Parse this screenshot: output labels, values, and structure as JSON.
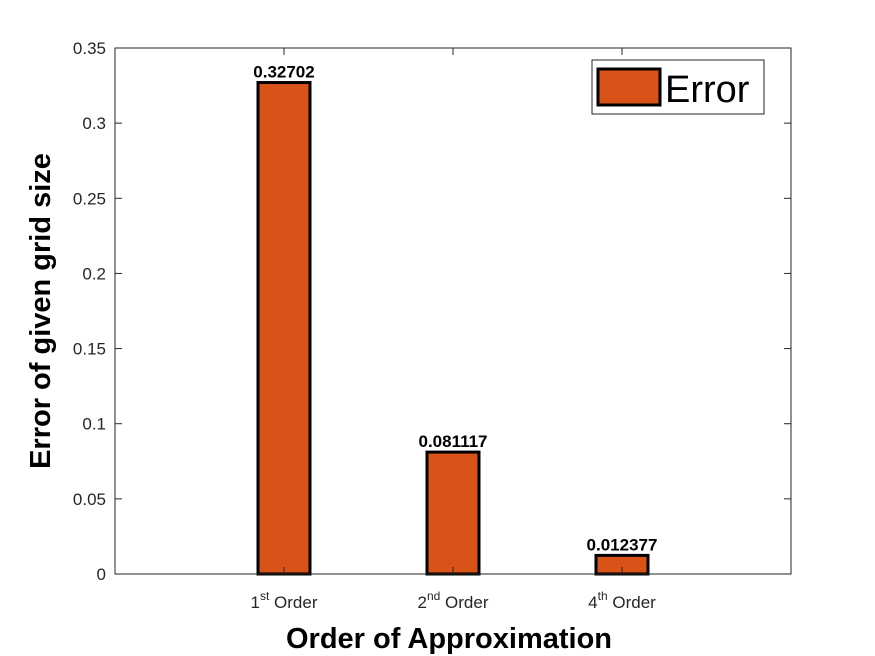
{
  "chart_data": {
    "type": "bar",
    "categories": [
      {
        "base": "1",
        "sup": "st",
        "rest": " Order"
      },
      {
        "base": "2",
        "sup": "nd",
        "rest": " Order"
      },
      {
        "base": "4",
        "sup": "th",
        "rest": " Order"
      }
    ],
    "series": [
      {
        "name": "Error",
        "values": [
          0.32702,
          0.081117,
          0.012377
        ],
        "color": "#D95319"
      }
    ],
    "data_labels": [
      "0.32702",
      "0.081117",
      "0.012377"
    ],
    "xlabel": "Order of Approximation",
    "ylabel": "Error of given grid size",
    "ylim": [
      0,
      0.35
    ],
    "yticks": [
      0,
      0.05,
      0.1,
      0.15,
      0.2,
      0.25,
      0.3,
      0.35
    ],
    "ytick_labels": [
      "0",
      "0.05",
      "0.1",
      "0.15",
      "0.2",
      "0.25",
      "0.3",
      "0.35"
    ],
    "xlim": [
      0,
      4
    ],
    "x_positions": [
      1,
      2,
      3
    ],
    "grid": false,
    "legend": {
      "placement": "top-right",
      "entries": [
        "Error"
      ]
    }
  }
}
